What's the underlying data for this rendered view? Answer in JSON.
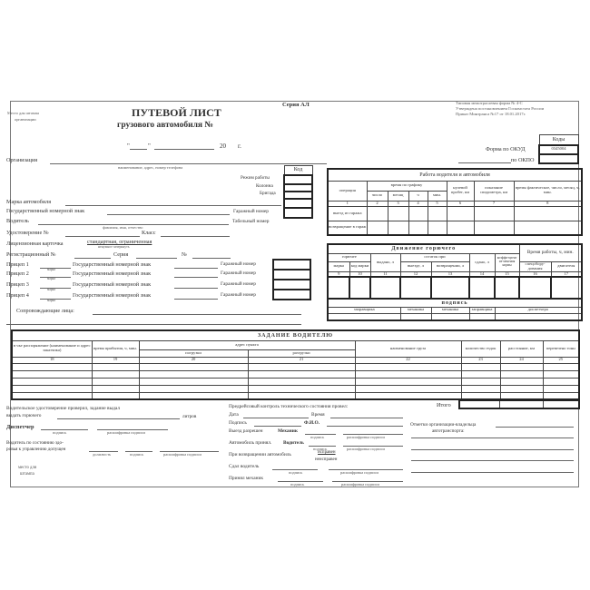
{
  "header": {
    "stamp_place": [
      "Место для штампа",
      "организации"
    ],
    "title": "ПУТЕВОЙ ЛИСТ",
    "subtitle": "грузового автомобиля №",
    "series": "Серия АЛ",
    "date_quote_open": "\"",
    "date_quote_close": "\"",
    "date_year": "20",
    "date_suffix": "г.",
    "form_info": [
      "Типовая межотраслевая форма № 4-С",
      "Утверждена постановлением Госкомстата России",
      "Приказ Минтранса №17 от 18.01.2017г."
    ],
    "codes_label": "Коды",
    "okud_label": "Форма по ОКУД",
    "okud_value": "0345004",
    "okpo_label": "по ОКПО"
  },
  "left_fields": {
    "organization": "Организация",
    "organization_caption": "наименование, адрес, номер телефона",
    "code_label": "Код",
    "work_mode": "Режим работы",
    "column": "Колонна",
    "brigade": "Бригада",
    "car_brand": "Марка автомобиля",
    "plate": "Государственный номерной знак",
    "garage_number": "Гаражный номер",
    "driver": "Водитель",
    "driver_caption": "фамилия, имя, отчество",
    "tab_number": "Табельный номер",
    "license": "Удостоверение №",
    "class": "Класс",
    "license_card": "Лицензионная карточка",
    "license_card_value": "стандартная, ограниченная",
    "license_card_caption": "ненужное зачеркнуть",
    "reg_number": "Регистрационный №",
    "series": "Серия",
    "number": "№",
    "trailers": [
      {
        "label": "Прицеп 1",
        "caption": "марка",
        "plate": "Государственный номерной знак",
        "garage": "Гаражный номер"
      },
      {
        "label": "Прицеп 2",
        "caption": "марка",
        "plate": "Государственный номерной знак",
        "garage": "Гаражный номер"
      },
      {
        "label": "Прицеп 3",
        "caption": "марка",
        "plate": "Государственный номерной знак",
        "garage": "Гаражный номер"
      },
      {
        "label": "Прицеп 4",
        "caption": "марка",
        "plate": "Государственный номерной знак",
        "garage": "Гаражный номер"
      }
    ],
    "escorts": "Сопровождающие лица:"
  },
  "work_table": {
    "title": "Работа водителя и автомобиля",
    "operation": "операция",
    "schedule_time": "время по графику",
    "day": "число",
    "month": "месяц",
    "hour": "ч",
    "min": "мин.",
    "zero_run": "нулевой пробег, км",
    "odometer": "показание спидометра, км",
    "actual_time": "время фактическое, число, месяц, ч, мин.",
    "numbers": [
      "1",
      "2",
      "3",
      "4",
      "5",
      "6",
      "7",
      "8"
    ],
    "rows": [
      "выезд из гаража",
      "возвращение в гараж"
    ]
  },
  "fuel_table": {
    "title": "Движение горючего",
    "work_time": "Время работы, ч, мин.",
    "fuel": "горючее",
    "issued": "выдано, л",
    "remaining": "остаток при",
    "returned": "сдано, л",
    "coef": "коэффи-циент из-менения нормы",
    "brand": "марка",
    "brand_code": "код марки",
    "departure": "выезде, л",
    "return": "возвращении, л",
    "special": "спецобору-дования",
    "engine": "двигателя",
    "numbers": [
      "9",
      "10",
      "11",
      "12",
      "13",
      "14",
      "15",
      "16",
      "17"
    ],
    "signature": "подпись",
    "signers": [
      "заправщика",
      "механика",
      "механика",
      "заправщика",
      "диспетчера"
    ]
  },
  "task_table": {
    "title": "ЗАДАНИЕ ВОДИТЕЛЮ",
    "columns": [
      "в чье распоряжение (наименование и адрес заказчика)",
      "время прибытия, ч, мин.",
      "погрузки",
      "разгрузки",
      "наименование груза",
      "количество ездок",
      "расстояние, км",
      "перевезено тонн"
    ],
    "address": "адрес пункта",
    "numbers": [
      "18",
      "19",
      "20",
      "21",
      "22",
      "23",
      "24",
      "25"
    ],
    "total": "Итого"
  },
  "bottom_left": {
    "checked": "Водительское удостоверение проверил, задание выдал",
    "fuel_issue": "выдать горючего",
    "liters": "литров",
    "dispatcher": "Диспетчер",
    "signature": "подпись",
    "sig_decode": "расшифровка подписи",
    "health": [
      "Водитель по состоянию здо-",
      "ровья к управлению допущен"
    ],
    "position": "должность",
    "stamp": [
      "место для",
      "штампа"
    ]
  },
  "bottom_mid": {
    "precheck": "Предрейсовый контроль технического состояния провел:",
    "date": "Дата",
    "time": "Время",
    "signature_label": "Подпись",
    "fio": "Ф.И.О.",
    "exit_allowed": "Выезд разрешен",
    "mechanic": "Механик",
    "car_accepted": "Автомобиль принял.",
    "driver": "Водитель",
    "on_return": "При возвращении автомобиль",
    "serviceable": "исправен",
    "faulty": "неисправен",
    "handed": "Сдал водитель",
    "received": "Принял механик",
    "signature": "подпись",
    "sig_decode": "расшифровка подписи"
  },
  "bottom_right": {
    "notes": [
      "Отметки организации-владельца",
      "автотранспорта:"
    ]
  }
}
